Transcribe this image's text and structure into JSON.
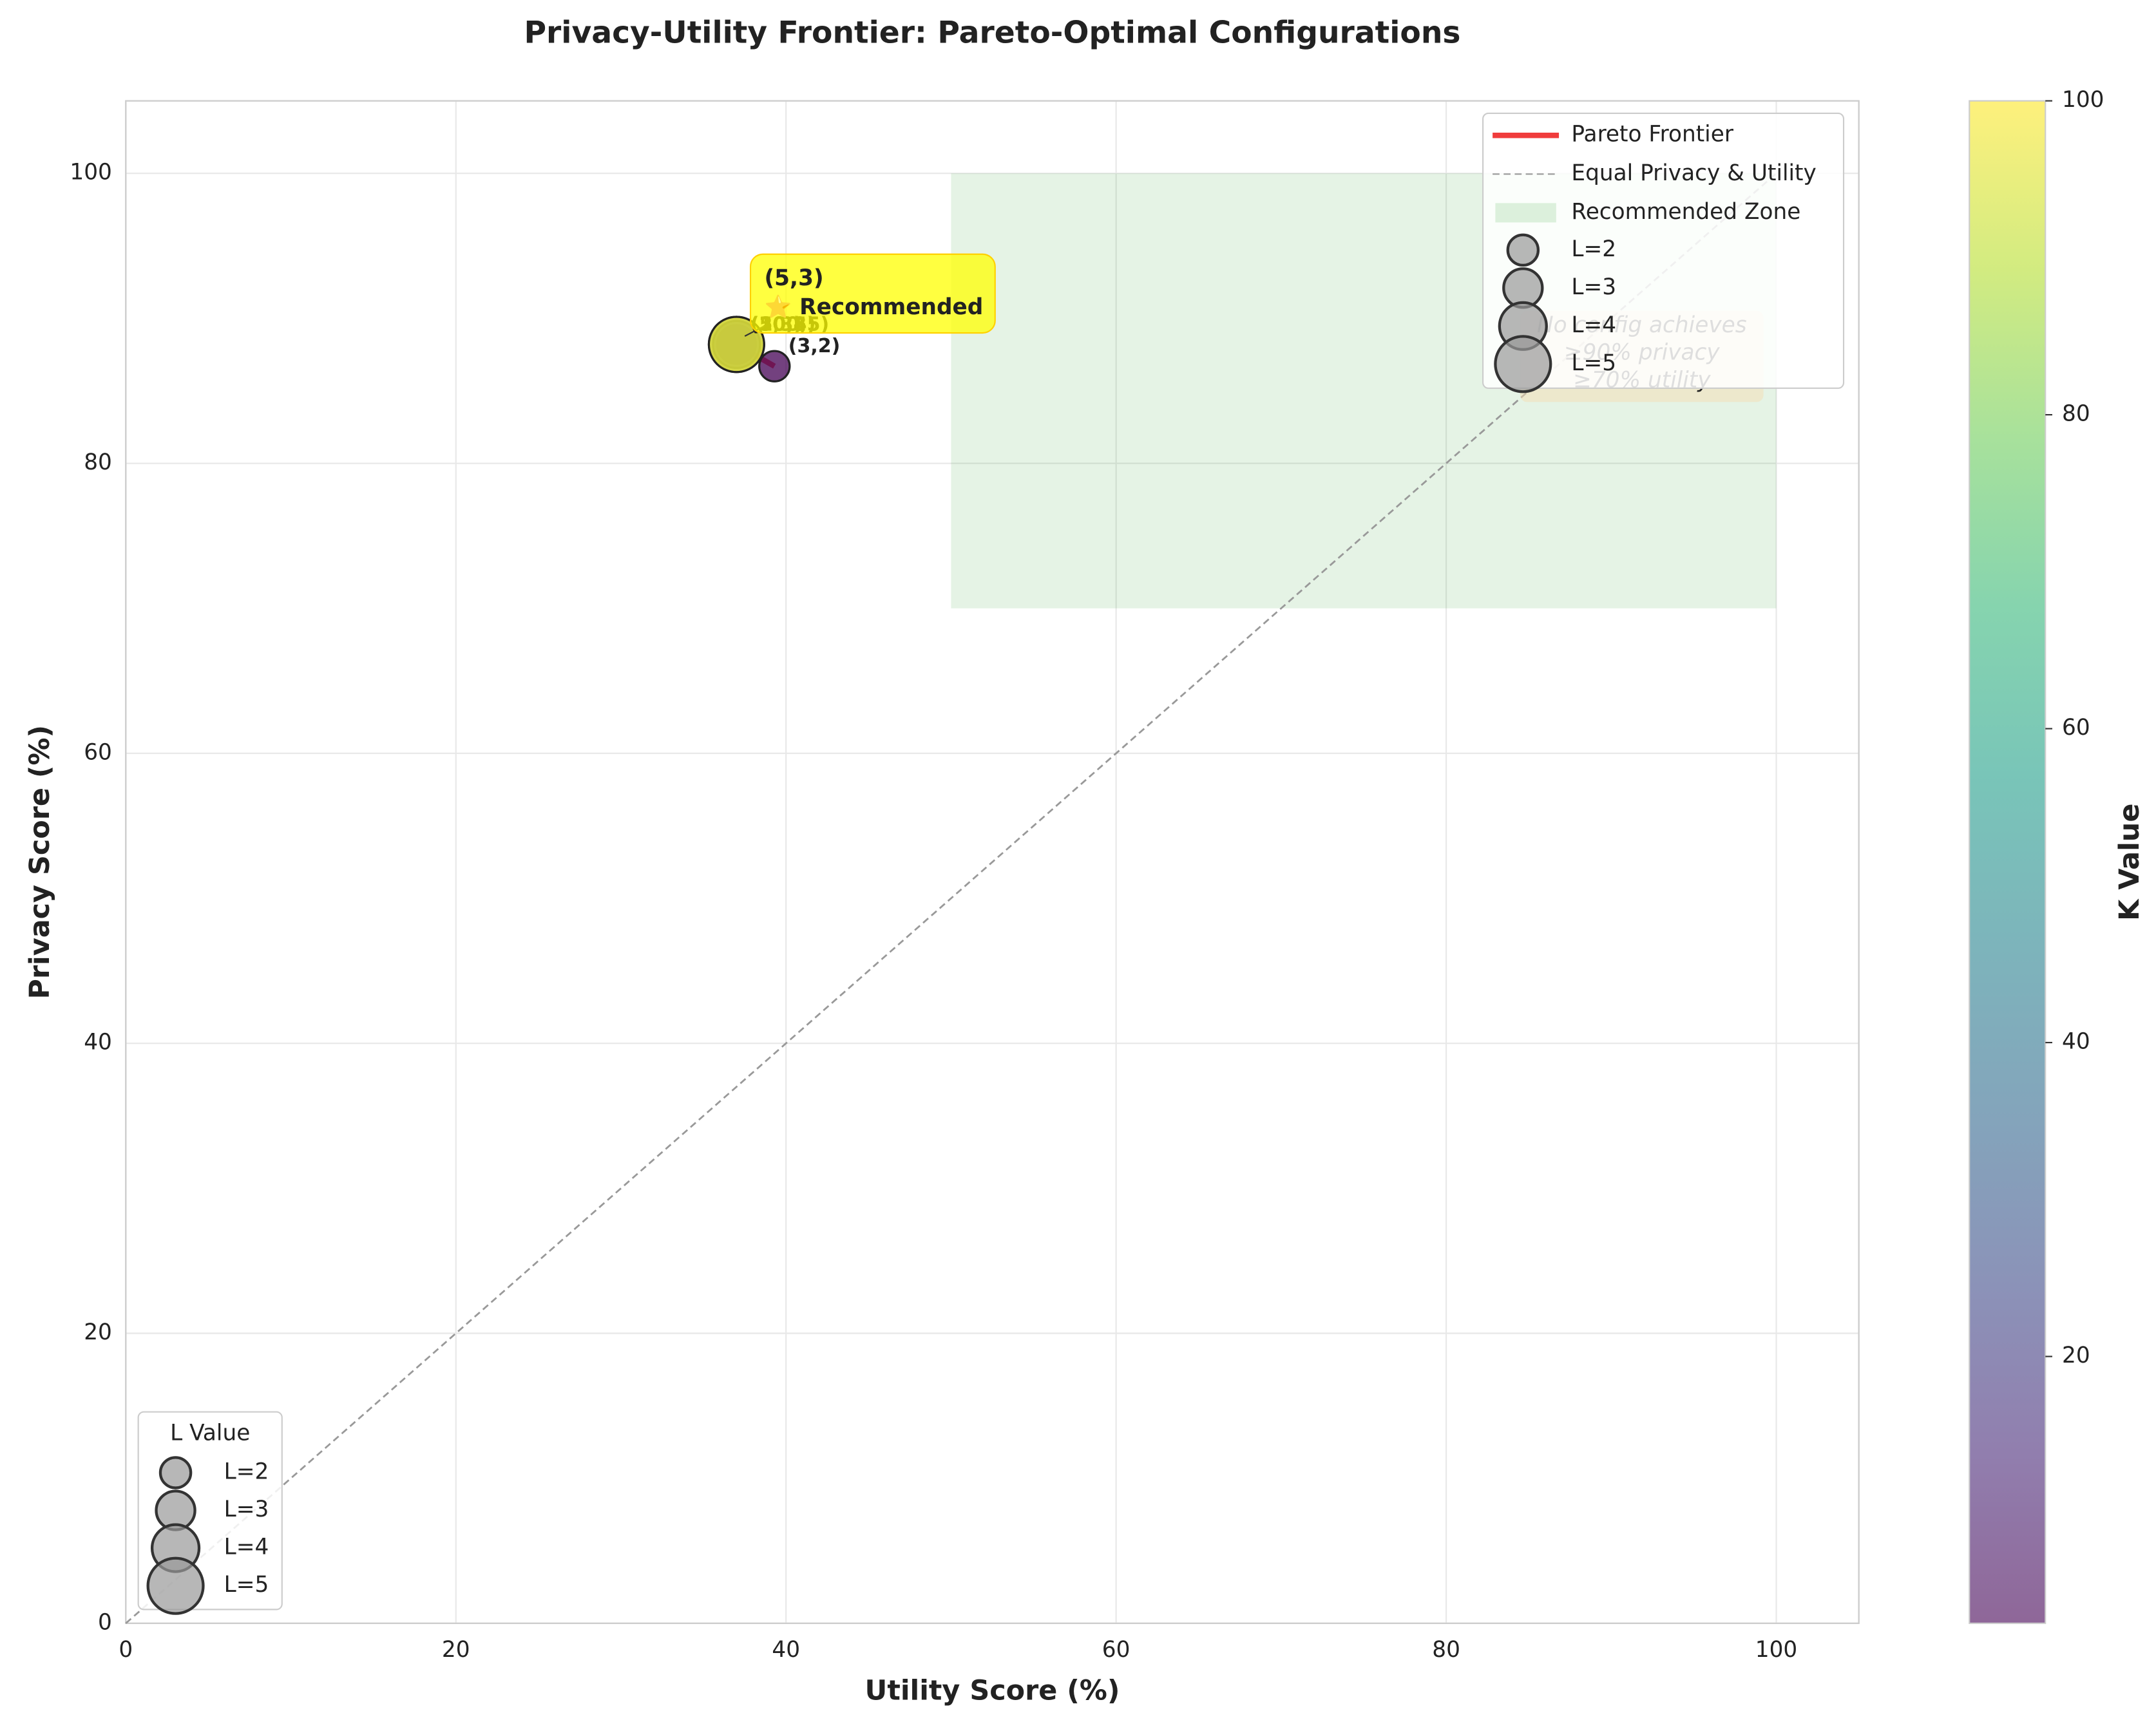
{
  "chart_data": {
    "type": "scatter",
    "title": "Privacy-Utility Frontier: Pareto-Optimal Configurations",
    "x_label": "Utility Score (%)",
    "y_label": "Privacy Score (%)",
    "xlim": [
      0,
      105
    ],
    "ylim": [
      0,
      105
    ],
    "xticks": [
      0,
      20,
      40,
      60,
      80,
      100
    ],
    "yticks": [
      0,
      20,
      40,
      60,
      80,
      100
    ],
    "grid": true,
    "points": {
      "x": [
        37,
        37,
        37,
        37,
        37,
        39.3
      ],
      "y": [
        88.2,
        88.2,
        88.2,
        88.2,
        88.2,
        86.7
      ],
      "k": [
        5,
        10,
        20,
        50,
        100,
        3
      ],
      "l": [
        3,
        3,
        4,
        5,
        5,
        2
      ],
      "labels": [
        "(5,3)",
        "(10,3)",
        "(20,4)",
        "(50,5)",
        "(100,5)",
        "(3,2)"
      ]
    },
    "frontier": {
      "name": "Pareto Frontier",
      "color": "#f03c3c",
      "x": [
        37,
        39.3
      ],
      "y": [
        88.2,
        86.7
      ]
    },
    "diagonal": {
      "name": "Equal Privacy & Utility",
      "color": "#999999",
      "x": [
        0,
        100
      ],
      "y": [
        0,
        100
      ]
    },
    "zone": {
      "name": "Recommended Zone",
      "color": "#2ca02c",
      "xlim": [
        50,
        100
      ],
      "ylim": [
        70,
        100
      ]
    },
    "recommended": {
      "x": 37,
      "y": 88.2,
      "lines": [
        "(5,3)",
        "⭐ Recommended"
      ]
    },
    "note": {
      "lines": [
        "No config achieves",
        "≥90% privacy",
        "≥70% utility"
      ]
    },
    "size_legend": {
      "title": "L Value",
      "entries": [
        "L=2",
        "L=3",
        "L=4",
        "L=5"
      ],
      "l": [
        2,
        3,
        4,
        5
      ]
    },
    "colorbar": {
      "label": "K Value",
      "colormap": "viridis",
      "clim": [
        3,
        100
      ],
      "ticks": [
        20,
        40,
        60,
        80,
        100
      ]
    }
  }
}
